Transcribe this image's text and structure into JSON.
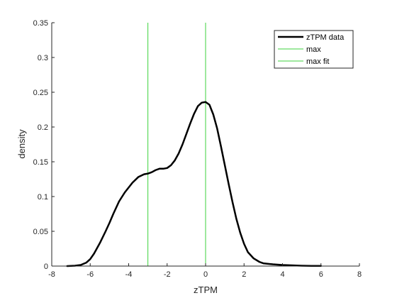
{
  "chart_data": {
    "type": "line",
    "title": "",
    "xlabel": "zTPM",
    "ylabel": "density",
    "xlim": [
      -8,
      8
    ],
    "ylim": [
      0,
      0.35
    ],
    "xticks": [
      -8,
      -6,
      -4,
      -2,
      0,
      2,
      4,
      6,
      8
    ],
    "yticks": [
      0,
      0.05,
      0.1,
      0.15,
      0.2,
      0.25,
      0.3,
      0.35
    ],
    "xtick_labels": [
      "-8",
      "-6",
      "-4",
      "-2",
      "0",
      "2",
      "4",
      "6",
      "8"
    ],
    "ytick_labels": [
      "0",
      "0.05",
      "0.1",
      "0.15",
      "0.2",
      "0.25",
      "0.3",
      "0.35"
    ],
    "grid": false,
    "legend_position": "top-right",
    "series": [
      {
        "name": "zTPM data",
        "color": "#000000",
        "x": [
          -7.2,
          -6.8,
          -6.5,
          -6.2,
          -6.0,
          -5.8,
          -5.5,
          -5.2,
          -5.0,
          -4.8,
          -4.5,
          -4.2,
          -4.0,
          -3.8,
          -3.5,
          -3.2,
          -3.0,
          -2.8,
          -2.6,
          -2.4,
          -2.2,
          -2.0,
          -1.8,
          -1.6,
          -1.4,
          -1.2,
          -1.0,
          -0.8,
          -0.6,
          -0.4,
          -0.2,
          0.0,
          0.2,
          0.4,
          0.6,
          0.8,
          1.0,
          1.2,
          1.4,
          1.6,
          1.8,
          2.0,
          2.2,
          2.5,
          2.8,
          3.0,
          3.5,
          4.0,
          4.5,
          5.0,
          5.5,
          6.0
        ],
        "y": [
          0.0,
          0.0005,
          0.0015,
          0.005,
          0.01,
          0.018,
          0.033,
          0.05,
          0.062,
          0.075,
          0.093,
          0.106,
          0.113,
          0.12,
          0.128,
          0.132,
          0.133,
          0.135,
          0.138,
          0.14,
          0.14,
          0.141,
          0.145,
          0.152,
          0.162,
          0.175,
          0.19,
          0.205,
          0.219,
          0.23,
          0.235,
          0.236,
          0.232,
          0.218,
          0.198,
          0.172,
          0.145,
          0.118,
          0.092,
          0.068,
          0.048,
          0.032,
          0.02,
          0.011,
          0.006,
          0.004,
          0.0025,
          0.0015,
          0.001,
          0.0005,
          0.0003,
          0.0002
        ]
      },
      {
        "name": "max",
        "color": "#3cd23c",
        "type": "vline",
        "x": -3.0
      },
      {
        "name": "max fit",
        "color": "#3cd23c",
        "type": "vline",
        "x": 0.0
      }
    ]
  }
}
